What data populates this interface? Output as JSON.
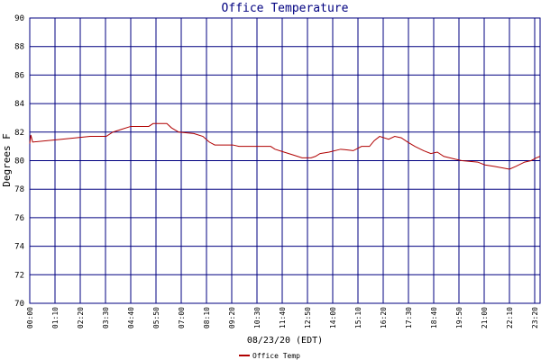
{
  "chart_data": {
    "type": "line",
    "title": "Office Temperature",
    "y_label": "Degrees F",
    "x_label": "08/23/20 (EDT)",
    "x": [
      0,
      3,
      8,
      88,
      168,
      212,
      230,
      255,
      280,
      330,
      342,
      380,
      393,
      413,
      455,
      480,
      498,
      513,
      563,
      580,
      668,
      680,
      705,
      730,
      755,
      780,
      792,
      805,
      830,
      862,
      897,
      920,
      942,
      955,
      970,
      995,
      1012,
      1030,
      1048,
      1068,
      1092,
      1112,
      1130,
      1148,
      1180,
      1198,
      1242,
      1262,
      1288,
      1330,
      1348,
      1372,
      1390,
      1405,
      1415
    ],
    "series": [
      {
        "name": "Office Temp",
        "color": "#b00000",
        "values": [
          81.2,
          81.8,
          81.3,
          81.5,
          81.7,
          81.7,
          82.0,
          82.2,
          82.4,
          82.4,
          82.6,
          82.6,
          82.3,
          82.0,
          81.9,
          81.7,
          81.3,
          81.1,
          81.1,
          81.0,
          81.0,
          80.8,
          80.6,
          80.4,
          80.2,
          80.2,
          80.3,
          80.5,
          80.6,
          80.8,
          80.7,
          81.0,
          81.0,
          81.4,
          81.7,
          81.5,
          81.7,
          81.6,
          81.3,
          81.0,
          80.7,
          80.5,
          80.6,
          80.3,
          80.1,
          80.0,
          79.9,
          79.7,
          79.6,
          79.4,
          79.6,
          79.9,
          80.0,
          80.2,
          80.3
        ]
      }
    ],
    "xlim": [
      0,
      1415
    ],
    "xticks": [
      {
        "value": 0,
        "label": "00:00"
      },
      {
        "value": 70,
        "label": "01:10"
      },
      {
        "value": 140,
        "label": "02:20"
      },
      {
        "value": 210,
        "label": "03:30"
      },
      {
        "value": 280,
        "label": "04:40"
      },
      {
        "value": 350,
        "label": "05:50"
      },
      {
        "value": 420,
        "label": "07:00"
      },
      {
        "value": 490,
        "label": "08:10"
      },
      {
        "value": 560,
        "label": "09:20"
      },
      {
        "value": 630,
        "label": "10:30"
      },
      {
        "value": 700,
        "label": "11:40"
      },
      {
        "value": 770,
        "label": "12:50"
      },
      {
        "value": 840,
        "label": "14:00"
      },
      {
        "value": 910,
        "label": "15:10"
      },
      {
        "value": 980,
        "label": "16:20"
      },
      {
        "value": 1050,
        "label": "17:30"
      },
      {
        "value": 1120,
        "label": "18:40"
      },
      {
        "value": 1190,
        "label": "19:50"
      },
      {
        "value": 1260,
        "label": "21:00"
      },
      {
        "value": 1330,
        "label": "22:10"
      },
      {
        "value": 1400,
        "label": "23:20"
      }
    ],
    "ylim": [
      70,
      90
    ],
    "yticks": [
      70,
      72,
      74,
      76,
      78,
      80,
      82,
      84,
      86,
      88,
      90
    ],
    "grid": true
  }
}
